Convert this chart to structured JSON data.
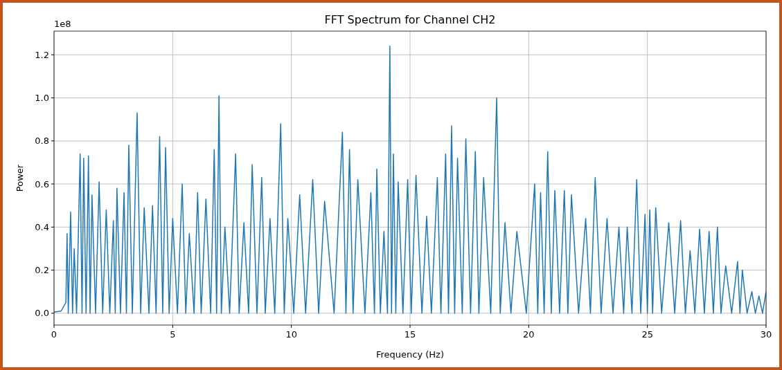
{
  "chart_data": {
    "type": "line",
    "title": "FFT Spectrum for Channel CH2",
    "xlabel": "Frequency (Hz)",
    "ylabel": "Power",
    "annotations": [
      "1e8"
    ],
    "xlim": [
      0,
      30
    ],
    "xticks": [
      0,
      5,
      10,
      15,
      20,
      25,
      30
    ],
    "ylim": [
      -0.055,
      1.31
    ],
    "yticks": [
      {
        "value": 0,
        "label": "0.0"
      },
      {
        "value": 0.2,
        "label": "0.2"
      },
      {
        "value": 0.4,
        "label": "0.4"
      },
      {
        "value": 0.6,
        "label": "0.6"
      },
      {
        "value": 0.8,
        "label": "0.8"
      },
      {
        "value": 1,
        "label": "1.0"
      },
      {
        "value": 1.2,
        "label": "1.2"
      }
    ],
    "grid": true,
    "line_style": "solid",
    "series": [
      {
        "color": "#1f77b4",
        "x": [
          0,
          0.3,
          0.5,
          0.55,
          0.6,
          0.7,
          0.78,
          0.85,
          0.95,
          1.1,
          1.18,
          1.25,
          1.35,
          1.45,
          1.52,
          1.6,
          1.75,
          1.9,
          2.05,
          2.2,
          2.35,
          2.5,
          2.58,
          2.65,
          2.8,
          2.95,
          3.05,
          3.15,
          3.3,
          3.5,
          3.65,
          3.8,
          4.0,
          4.15,
          4.3,
          4.45,
          4.58,
          4.7,
          4.85,
          5.0,
          5.2,
          5.4,
          5.55,
          5.7,
          5.9,
          6.05,
          6.2,
          6.4,
          6.6,
          6.75,
          6.85,
          6.95,
          7.05,
          7.2,
          7.4,
          7.65,
          7.8,
          8.0,
          8.2,
          8.35,
          8.55,
          8.75,
          8.9,
          9.1,
          9.3,
          9.55,
          9.7,
          9.85,
          10.1,
          10.35,
          10.6,
          10.9,
          11.15,
          11.4,
          11.8,
          12.15,
          12.3,
          12.45,
          12.6,
          12.8,
          13.1,
          13.35,
          13.5,
          13.6,
          13.75,
          13.9,
          14.05,
          14.15,
          14.22,
          14.3,
          14.4,
          14.5,
          14.7,
          14.9,
          15.05,
          15.25,
          15.5,
          15.7,
          15.9,
          16.15,
          16.3,
          16.5,
          16.62,
          16.75,
          16.88,
          17.0,
          17.2,
          17.35,
          17.55,
          17.75,
          17.9,
          18.1,
          18.4,
          18.65,
          18.8,
          19.0,
          19.25,
          19.5,
          19.9,
          20.25,
          20.38,
          20.5,
          20.65,
          20.8,
          20.95,
          21.1,
          21.3,
          21.5,
          21.65,
          21.8,
          22.1,
          22.4,
          22.6,
          22.8,
          23.05,
          23.3,
          23.55,
          23.8,
          24.0,
          24.15,
          24.35,
          24.55,
          24.72,
          24.9,
          25.0,
          25.1,
          25.22,
          25.35,
          25.6,
          25.9,
          26.15,
          26.4,
          26.6,
          26.8,
          27.0,
          27.2,
          27.4,
          27.6,
          27.78,
          27.95,
          28.1,
          28.3,
          28.55,
          28.8,
          28.9,
          29.0,
          29.2,
          29.4,
          29.55,
          29.7,
          29.85,
          30
        ],
        "values": [
          0.005,
          0.01,
          0.05,
          0.37,
          0,
          0.47,
          0,
          0.3,
          0,
          0.74,
          0,
          0.72,
          0,
          0.73,
          0,
          0.55,
          0,
          0.61,
          0,
          0.48,
          0,
          0.43,
          0,
          0.58,
          0,
          0.56,
          0,
          0.78,
          0,
          0.93,
          0,
          0.49,
          0,
          0.5,
          0,
          0.82,
          0,
          0.77,
          0,
          0.44,
          0,
          0.6,
          0,
          0.37,
          0,
          0.56,
          0,
          0.53,
          0,
          0.76,
          0,
          1.01,
          0,
          0.4,
          0,
          0.74,
          0,
          0.42,
          0,
          0.69,
          0,
          0.63,
          0,
          0.44,
          0,
          0.88,
          0,
          0.44,
          0,
          0.55,
          0,
          0.62,
          0,
          0.52,
          0,
          0.84,
          0,
          0.76,
          0,
          0.62,
          0,
          0.56,
          0,
          0.67,
          0,
          0.38,
          0,
          1.24,
          0,
          0.74,
          0,
          0.61,
          0,
          0.62,
          0,
          0.64,
          0,
          0.45,
          0,
          0.63,
          0,
          0.74,
          0,
          0.87,
          0,
          0.72,
          0,
          0.81,
          0,
          0.75,
          0,
          0.63,
          0,
          1.0,
          0,
          0.42,
          0,
          0.38,
          0,
          0.6,
          0,
          0.56,
          0,
          0.75,
          0,
          0.57,
          0,
          0.57,
          0,
          0.55,
          0,
          0.44,
          0,
          0.63,
          0,
          0.44,
          0,
          0.4,
          0,
          0.4,
          0,
          0.62,
          0,
          0.46,
          0,
          0.48,
          0,
          0.49,
          0,
          0.42,
          0,
          0.43,
          0,
          0.29,
          0,
          0.39,
          0,
          0.38,
          0,
          0.4,
          0,
          0.22,
          0,
          0.24,
          0,
          0.2,
          0,
          0.1,
          0,
          0.08,
          0,
          0.1
        ]
      }
    ]
  }
}
